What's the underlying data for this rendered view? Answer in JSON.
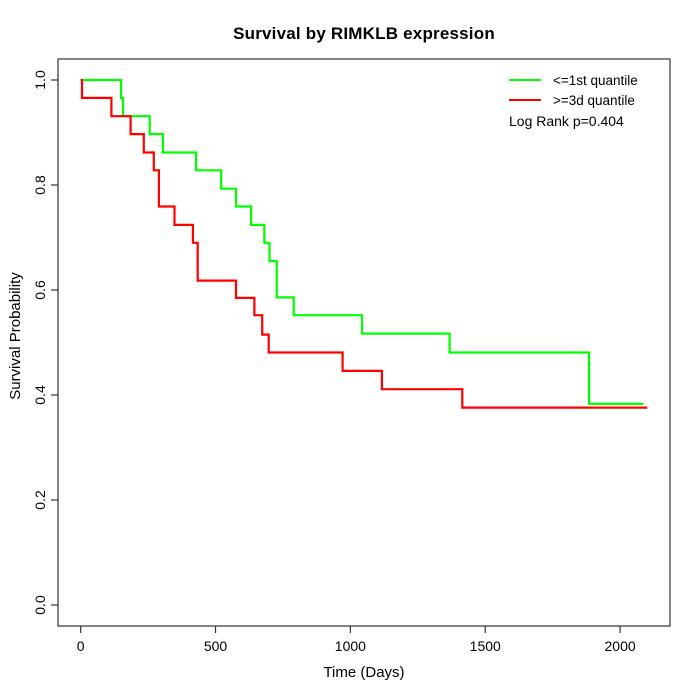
{
  "title": "Survival by RIMKLB expression",
  "chart_data": {
    "type": "line",
    "subtype": "kaplan-meier-step",
    "title": "Survival by RIMKLB expression",
    "xlabel": "Time (Days)",
    "ylabel": "Survival Probability",
    "grid": false,
    "frame_color": "#333333",
    "x_axis": {
      "range": [
        0,
        2100
      ],
      "ticks": [
        {
          "label": "0",
          "value": 0
        },
        {
          "label": "500",
          "value": 500
        },
        {
          "label": "1000",
          "value": 1000
        },
        {
          "label": "1500",
          "value": 1500
        },
        {
          "label": "2000",
          "value": 2000
        }
      ]
    },
    "y_axis": {
      "range": [
        0,
        1
      ],
      "ticks": [
        {
          "label": "0.0",
          "value": 0.0
        },
        {
          "label": "0.2",
          "value": 0.2
        },
        {
          "label": "0.4",
          "value": 0.4
        },
        {
          "label": "0.6",
          "value": 0.6
        },
        {
          "label": "0.8",
          "value": 0.8
        },
        {
          "label": "1.0",
          "value": 1.0
        }
      ]
    },
    "legend": {
      "position": "top-right",
      "entries": [
        {
          "label": "<=1st quantile",
          "color": "#00ff00"
        },
        {
          "label": ">=3d quantile",
          "color": "#ff0000"
        }
      ]
    },
    "annotation": "Log Rank p=0.404",
    "series": [
      {
        "name": "<=1st quantile",
        "color": "#00ff00",
        "points": [
          [
            0,
            1.0
          ],
          [
            150,
            0.966
          ],
          [
            157,
            0.931
          ],
          [
            256,
            0.897
          ],
          [
            305,
            0.862
          ],
          [
            428,
            0.828
          ],
          [
            521,
            0.793
          ],
          [
            576,
            0.759
          ],
          [
            632,
            0.724
          ],
          [
            681,
            0.69
          ],
          [
            700,
            0.655
          ],
          [
            727,
            0.586
          ],
          [
            790,
            0.552
          ],
          [
            1043,
            0.517
          ],
          [
            1368,
            0.481
          ],
          [
            1885,
            0.383
          ]
        ],
        "end_time": 2086
      },
      {
        "name": ">=3d quantile",
        "color": "#ff0000",
        "points": [
          [
            0,
            1.0
          ],
          [
            5,
            0.966
          ],
          [
            114,
            0.931
          ],
          [
            185,
            0.897
          ],
          [
            234,
            0.862
          ],
          [
            271,
            0.828
          ],
          [
            290,
            0.759
          ],
          [
            348,
            0.724
          ],
          [
            416,
            0.69
          ],
          [
            434,
            0.618
          ],
          [
            576,
            0.585
          ],
          [
            644,
            0.552
          ],
          [
            673,
            0.515
          ],
          [
            697,
            0.481
          ],
          [
            971,
            0.446
          ],
          [
            1117,
            0.411
          ],
          [
            1415,
            0.376
          ]
        ],
        "end_time": 2101
      }
    ]
  }
}
